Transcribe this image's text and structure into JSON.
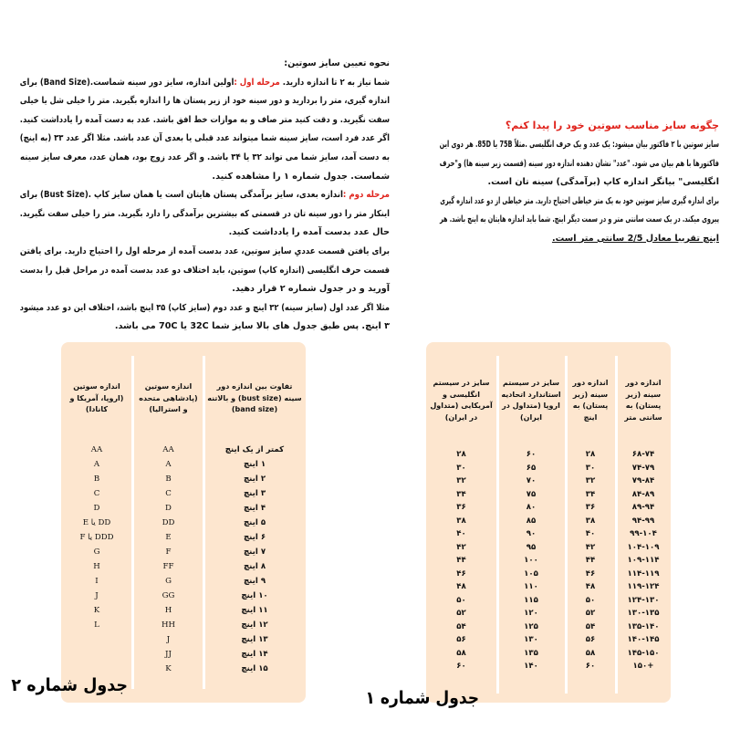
{
  "colors": {
    "accent_red": "#e0231c",
    "table_bg": "#fde6cf"
  },
  "right_section": {
    "title": "چگونه سایز مناسب سوتین خود را پیدا کنم؟",
    "lines": [
      {
        "text": "سایز سوتین با ۲ فاکتور بیان میشود: یک عدد و یک حرف انگلیسی .مثلاً  75B یا 85D. هر دوی این"
      },
      {
        "text": "فاکتورها با هم بیان می شود. \"عدد\"  نشان دهنده اندازه دور سینه (قسمت زیر سینه ها) و\"حرف"
      },
      {
        "text": "انگلیسی\" بیانگر اندازه کاپ (برآمدگی) سینه تان است.",
        "short": true
      },
      {
        "text": "برای اندازه گیری سایز سوتین خود به یک متر خیاطی احتیاج دارید. متر خیاطی از دو عدد اندازه گیری"
      },
      {
        "text": "پیروی میکند. در یک سمت سانتی متر و در سمت دیگر اینچ. شما باید اندازه هایتان به اینچ باشد. هر"
      },
      {
        "text": "اینچ تقریبا معادل 2/5 سانتی متر است.",
        "short": true,
        "underline": true
      }
    ]
  },
  "left_section": {
    "lines": [
      {
        "text": "نحوه تعیین سایز سوتین:",
        "short": true
      },
      {
        "prefix": "شما نیاز به ۲ تا اندازه دارید. ",
        "red": "مرحله اول :",
        "text": "اولین اندازه، سایز دور سینه شماست.(Band Size)  برای"
      },
      {
        "text": "اندازه گیری، متر را بردارید و دور سینه خود از زیر پستان ها را اندازه بگیرید. متر را خیلی شل یا خیلی"
      },
      {
        "text": "سفت نگیرید. و دقت کنید متر صاف و به موازات خط افق باشد. عدد به دست آمده را یادداشت کنید."
      },
      {
        "text": "اگر عدد فرد است، سایز سینه شما میتواند عدد قبلی یا بعدی آن عدد باشد. مثلا اگر عدد ۳۳ (به اینچ)"
      },
      {
        "text": "به دست آمد، سایز شما می تواند ۳۲ یا ۳۴ باشد. و اگر عدد زوج بود، همان عدد، معرف سایز سینه"
      },
      {
        "text": "شماست. جدول شماره ۱ را مشاهده کنید.",
        "short": true
      },
      {
        "red": "مرحله دوم :",
        "text": "اندازه بعدی، سایز برآمدگی پستان هایتان است یا همان سایز کاپ .(Bust Size) برای"
      },
      {
        "text": "اینکار متر را دور سینه تان در قسمتی که بیشترین برآمدگی را دارد بگیرید. متر را خیلی سفت نگیرید."
      },
      {
        "text": "حال عدد بدست آمده را یادداشت کنید.",
        "short": true
      },
      {
        "text": "برای یافتن قسمت عددیِ سایز سوتین، عدد بدست آمده از مرحله اول را احتیاج دارید. برای یافتن"
      },
      {
        "text": "قسمت حرف انگلیسی (اندازه کاپ) سوتین، باید اختلاف دو عدد بدست آمده در مراحل قبل را بدست"
      },
      {
        "text": "آورید و در جدول شماره ۲ قرار دهید.",
        "short": true
      },
      {
        "text": "مثلا اگر عدد اول (سایز سینه) ۳۲ اینچ و عدد دوم (سایز کاپ) ۳۵ اینچ باشد، اختلاف این دو عدد میشود"
      },
      {
        "text": "۳ اینچ. پس طبق جدول های بالا سایز شما  32C یا 70C می باشد.",
        "short": true
      }
    ]
  },
  "table1": {
    "caption": "جدول شماره ۱",
    "headers": [
      "اندازه دور سینه (زیر پستان) به سانتی متر",
      "اندازه دور سینه (زیر پستان) به اینچ",
      "سایز در سیستم استاندارد اتحادیه اروپا (متداول در ایران)",
      "سایز در سیستم انگلیسی و آمریکایی (متداول در ایران)"
    ],
    "rows": [
      [
        "۶۸-۷۴",
        "۲۸",
        "۶۰",
        "۲۸"
      ],
      [
        "۷۴-۷۹",
        "۳۰",
        "۶۵",
        "۳۰"
      ],
      [
        "۷۹-۸۴",
        "۳۲",
        "۷۰",
        "۳۲"
      ],
      [
        "۸۴-۸۹",
        "۳۴",
        "۷۵",
        "۳۴"
      ],
      [
        "۸۹-۹۴",
        "۳۶",
        "۸۰",
        "۳۶"
      ],
      [
        "۹۴-۹۹",
        "۳۸",
        "۸۵",
        "۳۸"
      ],
      [
        "۹۹-۱۰۴",
        "۴۰",
        "۹۰",
        "۴۰"
      ],
      [
        "۱۰۴-۱۰۹",
        "۴۲",
        "۹۵",
        "۴۲"
      ],
      [
        "۱۰۹-۱۱۴",
        "۴۴",
        "۱۰۰",
        "۴۴"
      ],
      [
        "۱۱۴-۱۱۹",
        "۴۶",
        "۱۰۵",
        "۴۶"
      ],
      [
        "۱۱۹-۱۲۴",
        "۴۸",
        "۱۱۰",
        "۴۸"
      ],
      [
        "۱۲۴-۱۳۰",
        "۵۰",
        "۱۱۵",
        "۵۰"
      ],
      [
        "۱۳۰-۱۳۵",
        "۵۲",
        "۱۲۰",
        "۵۲"
      ],
      [
        "۱۳۵-۱۴۰",
        "۵۴",
        "۱۲۵",
        "۵۴"
      ],
      [
        "۱۴۰-۱۴۵",
        "۵۶",
        "۱۳۰",
        "۵۶"
      ],
      [
        "۱۴۵-۱۵۰",
        "۵۸",
        "۱۳۵",
        "۵۸"
      ],
      [
        "+۱۵۰",
        "۶۰",
        "۱۴۰",
        "۶۰"
      ]
    ]
  },
  "table2": {
    "caption": "جدول شماره ۲",
    "headers": [
      "تفاوت بین اندازه دور سینه (bust size) و بالاتنه (band size)",
      "اندازه سوتین (پادشاهی متحده و استرالیا)",
      "اندازه سوتین (اروپا، آمریکا و کانادا)"
    ],
    "rows": [
      [
        "کمتر از یک اینچ",
        "AA",
        "AA"
      ],
      [
        "۱ اینچ",
        "A",
        "A"
      ],
      [
        "۲ اینچ",
        "B",
        "B"
      ],
      [
        "۳ اینچ",
        "C",
        "C"
      ],
      [
        "۴ اینچ",
        "D",
        "D"
      ],
      [
        "۵ اینچ",
        "DD",
        "DD یا E"
      ],
      [
        "۶ اینچ",
        "E",
        "DDD یا F"
      ],
      [
        "۷ اینچ",
        "F",
        "G"
      ],
      [
        "۸ اینچ",
        "FF",
        "H"
      ],
      [
        "۹ اینچ",
        "G",
        "I"
      ],
      [
        "۱۰ اینچ",
        "GG",
        "J"
      ],
      [
        "۱۱ اینچ",
        "H",
        "K"
      ],
      [
        "۱۲ اینچ",
        "HH",
        "L"
      ],
      [
        "۱۳ اینچ",
        "J",
        ""
      ],
      [
        "۱۴ اینچ",
        "JJ",
        ""
      ],
      [
        "۱۵ اینچ",
        "K",
        ""
      ]
    ]
  }
}
